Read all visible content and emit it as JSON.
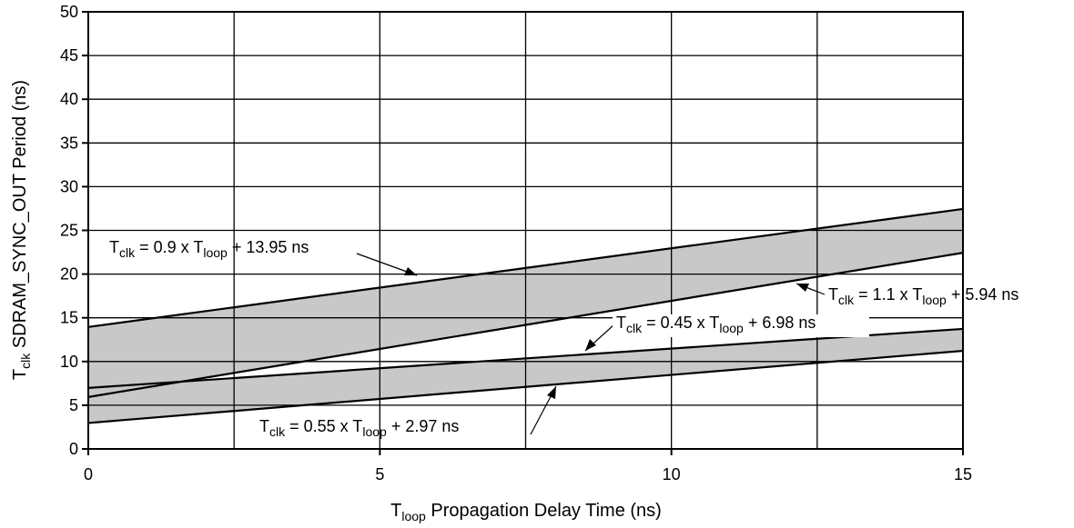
{
  "chart_data": {
    "type": "area",
    "xlim": [
      0,
      15
    ],
    "ylim": [
      0,
      50
    ],
    "grid": true,
    "x_ticks": [
      {
        "value": 0,
        "label": "0"
      },
      {
        "value": 5,
        "label": "5"
      },
      {
        "value": 10,
        "label": "10"
      },
      {
        "value": 15,
        "label": "15"
      }
    ],
    "y_ticks": [
      {
        "value": 0,
        "label": "0"
      },
      {
        "value": 5,
        "label": "5"
      },
      {
        "value": 10,
        "label": "10"
      },
      {
        "value": 15,
        "label": "15"
      },
      {
        "value": 20,
        "label": "20"
      },
      {
        "value": 25,
        "label": "25"
      },
      {
        "value": 30,
        "label": "30"
      },
      {
        "value": 35,
        "label": "35"
      },
      {
        "value": 40,
        "label": "40"
      },
      {
        "value": 45,
        "label": "45"
      },
      {
        "value": 50,
        "label": "50"
      }
    ],
    "x_gridlines": [
      2.5,
      5,
      7.5,
      10,
      12.5
    ],
    "xlabel": {
      "base": "T",
      "sub": "loop",
      "rest": " Propagation Delay Time (ns)"
    },
    "ylabel": {
      "base": "T",
      "sub": "clk",
      "rest": " SDRAM_SYNC_OUT Period (ns)"
    },
    "band_fill": "#c8c8c8",
    "bands": [
      {
        "upper": "eq_09",
        "lower": "eq_11"
      },
      {
        "upper": "eq_045",
        "lower": "eq_055"
      }
    ],
    "lines": [
      {
        "id": "eq_09",
        "slope": 0.9,
        "intercept": 13.95,
        "label": {
          "pre": "T",
          "pre_sub": "clk",
          "mid": " = 0.9 x T",
          "mid_sub": "loop",
          "post": " + 13.95 ns"
        }
      },
      {
        "id": "eq_11",
        "slope": 1.1,
        "intercept": 5.94,
        "label": {
          "pre": "T",
          "pre_sub": "clk",
          "mid": " = 1.1 x T",
          "mid_sub": "loop",
          "post": " + 5.94 ns"
        }
      },
      {
        "id": "eq_045",
        "slope": 0.45,
        "intercept": 6.98,
        "label": {
          "pre": "T",
          "pre_sub": "clk",
          "mid": " = 0.45 x T",
          "mid_sub": "loop",
          "post": " + 6.98 ns"
        }
      },
      {
        "id": "eq_055",
        "slope": 0.55,
        "intercept": 2.97,
        "label": {
          "pre": "T",
          "pre_sub": "clk",
          "mid": " = 0.55 x T",
          "mid_sub": "loop",
          "post": " + 2.97 ns"
        }
      }
    ]
  }
}
